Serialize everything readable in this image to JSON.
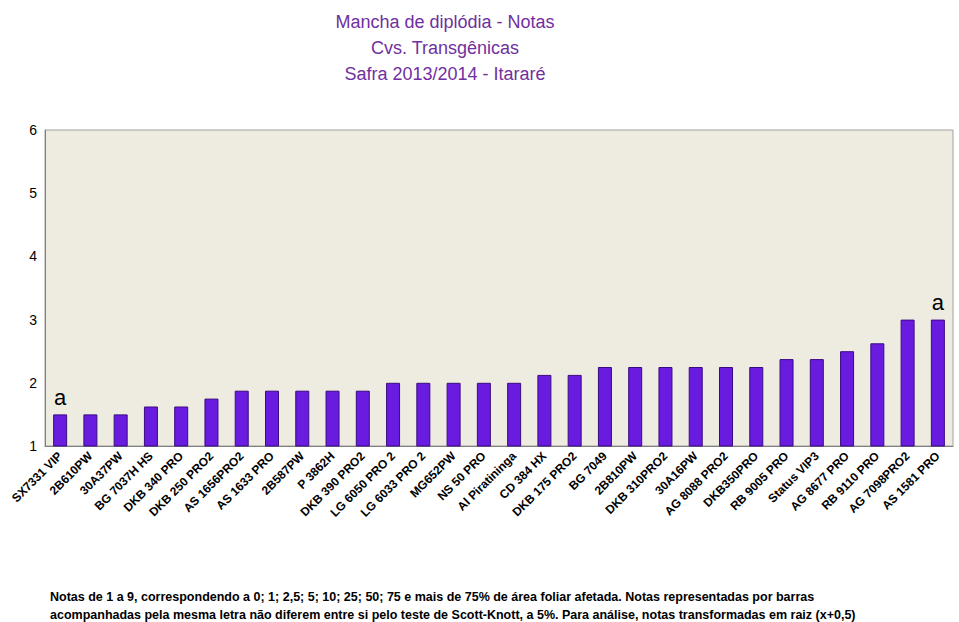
{
  "chart_data": {
    "type": "bar",
    "title": "Mancha de diplódia - Notas",
    "subtitle": [
      "Cvs. Transgênicas",
      "Safra 2013/2014 - Itararé"
    ],
    "categories": [
      "SX7331 VIP",
      "2B610PW",
      "30A37PW",
      "BG 7037H HS",
      "DKB 340 PRO",
      "DKB 250 PRO2",
      "AS 1656PRO2",
      "AS 1633 PRO",
      "2B587PW",
      "P 3862H",
      "DKB 390 PRO2",
      "LG 6050 PRO 2",
      "LG 6033 PRO 2",
      "MG652PW",
      "NS 50 PRO",
      "Al Piratininga",
      "CD 384 HX",
      "DKB 175 PRO2",
      "BG 7049",
      "2B810PW",
      "DKB 310PRO2",
      "30A16PW",
      "AG 8088 PRO2",
      "DKB350PRO",
      "RB 9005 PRO",
      "Status VIP3",
      "AG 8677 PRO",
      "RB 9110 PRO",
      "AG 7098PRO2",
      "AS 1581 PRO"
    ],
    "values": [
      1.5,
      1.5,
      1.5,
      1.625,
      1.625,
      1.75,
      1.875,
      1.875,
      1.875,
      1.875,
      1.875,
      2,
      2,
      2,
      2,
      2,
      2.125,
      2.125,
      2.25,
      2.25,
      2.25,
      2.25,
      2.25,
      2.25,
      2.375,
      2.375,
      2.5,
      2.625,
      3,
      3
    ],
    "color": "#6a1be0",
    "ylim": [
      1,
      6
    ],
    "yticks": [
      1,
      2,
      3,
      4,
      5,
      6
    ],
    "grid": false,
    "annotations": [
      {
        "category": "SX7331 VIP",
        "text": "a"
      },
      {
        "category": "AS 1581 PRO",
        "text": "a"
      }
    ],
    "footnote": "Notas de 1 a 9, correspondendo a 0; 1; 2,5; 5; 10; 25; 50; 75 e mais de 75% de área foliar afetada. Notas representadas por barras acompanhadas pela mesma letra não diferem entre si pelo teste de Scott-Knott, a 5%. Para análise, notas transformadas em raiz (x+0,5)"
  }
}
